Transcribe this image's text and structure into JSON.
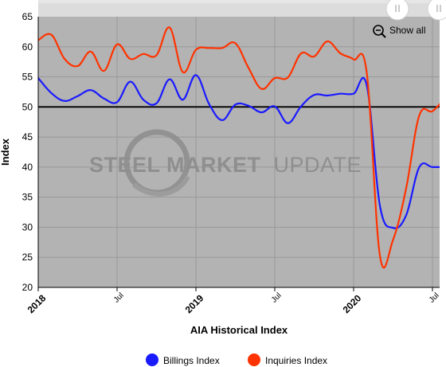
{
  "chart_data": {
    "type": "line",
    "xlabel": "AIA Historical Index",
    "ylabel": "Index",
    "ylim": [
      20,
      65
    ],
    "y_ticks": [
      "20",
      "25",
      "30",
      "35",
      "40",
      "45",
      "50",
      "55",
      "60",
      "65"
    ],
    "x_ticks": [
      {
        "label": "2018",
        "date": "2018-01",
        "major": true
      },
      {
        "label": "Jul",
        "date": "2018-07",
        "major": false
      },
      {
        "label": "2019",
        "date": "2019-01",
        "major": true
      },
      {
        "label": "Jul",
        "date": "2019-07",
        "major": false
      },
      {
        "label": "2020",
        "date": "2020-01",
        "major": true
      },
      {
        "label": "Jul",
        "date": "2020-07",
        "major": false
      }
    ],
    "x_range": [
      "2018-01",
      "2020-08"
    ],
    "reference_line": 50,
    "grid": true,
    "legend_position": "bottom",
    "series": [
      {
        "name": "Billings Index",
        "color": "#1a1aff",
        "points": [
          [
            "2018-01",
            54.8
          ],
          [
            "2018-02",
            52.3
          ],
          [
            "2018-03",
            51.0
          ],
          [
            "2018-04",
            51.8
          ],
          [
            "2018-05",
            52.8
          ],
          [
            "2018-06",
            51.4
          ],
          [
            "2018-07",
            50.8
          ],
          [
            "2018-08",
            54.2
          ],
          [
            "2018-09",
            51.2
          ],
          [
            "2018-10",
            50.6
          ],
          [
            "2018-11",
            54.6
          ],
          [
            "2018-12",
            51.2
          ],
          [
            "2019-01",
            55.3
          ],
          [
            "2019-02",
            50.5
          ],
          [
            "2019-03",
            47.8
          ],
          [
            "2019-04",
            50.4
          ],
          [
            "2019-05",
            50.2
          ],
          [
            "2019-06",
            49.1
          ],
          [
            "2019-07",
            50.1
          ],
          [
            "2019-08",
            47.3
          ],
          [
            "2019-09",
            50.1
          ],
          [
            "2019-10",
            52.0
          ],
          [
            "2019-11",
            51.9
          ],
          [
            "2019-12",
            52.2
          ],
          [
            "2020-01",
            52.2
          ],
          [
            "2020-02",
            53.6
          ],
          [
            "2020-03",
            33.6
          ],
          [
            "2020-04",
            29.9
          ],
          [
            "2020-05",
            32.0
          ],
          [
            "2020-06",
            40.0
          ],
          [
            "2020-07",
            40.0
          ],
          [
            "2020-08",
            40.0
          ]
        ]
      },
      {
        "name": "Inquiries Index",
        "color": "#ff3300",
        "points": [
          [
            "2018-01",
            61.1
          ],
          [
            "2018-02",
            62.0
          ],
          [
            "2018-03",
            58.0
          ],
          [
            "2018-04",
            56.8
          ],
          [
            "2018-05",
            59.2
          ],
          [
            "2018-06",
            56.0
          ],
          [
            "2018-07",
            60.4
          ],
          [
            "2018-08",
            58.0
          ],
          [
            "2018-09",
            58.8
          ],
          [
            "2018-10",
            58.6
          ],
          [
            "2018-11",
            63.2
          ],
          [
            "2018-12",
            55.8
          ],
          [
            "2019-01",
            59.5
          ],
          [
            "2019-02",
            59.8
          ],
          [
            "2019-03",
            59.8
          ],
          [
            "2019-04",
            60.6
          ],
          [
            "2019-05",
            56.5
          ],
          [
            "2019-06",
            53.0
          ],
          [
            "2019-07",
            54.8
          ],
          [
            "2019-08",
            54.9
          ],
          [
            "2019-09",
            58.9
          ],
          [
            "2019-10",
            58.4
          ],
          [
            "2019-11",
            60.9
          ],
          [
            "2019-12",
            58.9
          ],
          [
            "2020-01",
            57.9
          ],
          [
            "2020-02",
            55.7
          ],
          [
            "2020-03",
            25.3
          ],
          [
            "2020-04",
            27.9
          ],
          [
            "2020-05",
            36.5
          ],
          [
            "2020-06",
            48.6
          ],
          [
            "2020-07",
            49.3
          ],
          [
            "2020-08",
            51.6
          ]
        ]
      }
    ],
    "legend": [
      {
        "label": "Billings Index",
        "color": "#1a1aff"
      },
      {
        "label": "Inquiries Index",
        "color": "#ff3300"
      }
    ]
  },
  "controls": {
    "show_all_label": "Show all",
    "show_all_icon": "zoom-out-icon",
    "scroll_handle_icon": "scroll-handle-icon"
  },
  "watermark": {
    "brand_part1": "STEEL MARKET",
    "brand_part2": "UPDATE"
  },
  "colors": {
    "plot_background": "#b3b3b3",
    "grid": "#999999",
    "reference_line": "#000000"
  }
}
